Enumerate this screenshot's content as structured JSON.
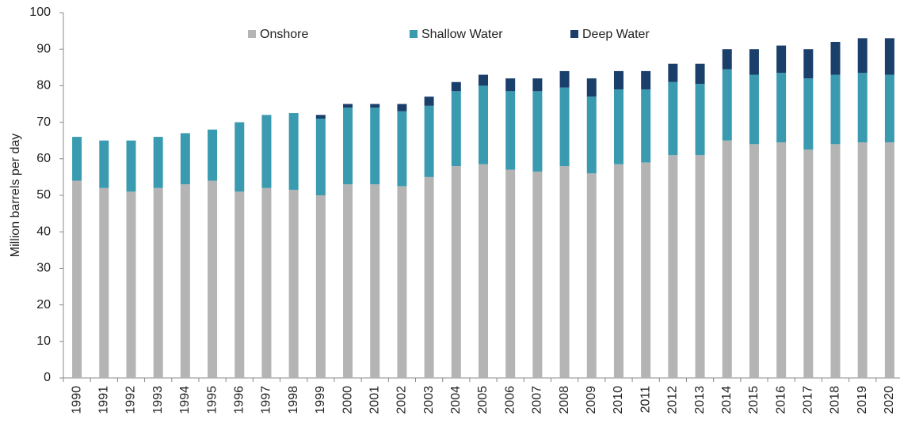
{
  "chart_data": {
    "type": "stacked_bar",
    "y_label": "Million barrels per day",
    "categories": [
      "1990",
      "1991",
      "1992",
      "1993",
      "1994",
      "1995",
      "1996",
      "1997",
      "1998",
      "1999",
      "2000",
      "2001",
      "2002",
      "2003",
      "2004",
      "2005",
      "2006",
      "2007",
      "2008",
      "2009",
      "2010",
      "2011",
      "2012",
      "2013",
      "2014",
      "2015",
      "2016",
      "2017",
      "2018",
      "2019",
      "2020"
    ],
    "series": [
      {
        "name": "Onshore",
        "color": "#b4b4b4",
        "values": [
          54,
          52,
          51,
          52,
          53,
          54,
          51,
          52,
          51.5,
          50,
          53,
          53,
          52.5,
          55,
          58,
          58.5,
          57,
          56.5,
          58,
          56,
          58.5,
          59,
          61,
          61,
          65,
          64,
          64.5,
          62.5,
          64,
          64.5,
          64.5
        ]
      },
      {
        "name": "Shallow Water",
        "color": "#3a9bb0",
        "values": [
          12,
          13,
          14,
          14,
          14,
          14,
          19,
          20,
          21,
          21,
          21,
          21,
          20.5,
          19.5,
          20.5,
          21.5,
          21.5,
          22,
          21.5,
          21,
          20.5,
          20,
          20,
          19.5,
          19.5,
          19,
          19,
          19.5,
          19,
          19,
          18.5
        ]
      },
      {
        "name": "Deep Water",
        "color": "#1a3f6b",
        "values": [
          0,
          0,
          0,
          0,
          0,
          0,
          0,
          0,
          0,
          1,
          1,
          1,
          2,
          2.5,
          2.5,
          3,
          3.5,
          3.5,
          4.5,
          5,
          5,
          5,
          5,
          5.5,
          5.5,
          7,
          7.5,
          8,
          9,
          9.5,
          10
        ]
      }
    ],
    "ylim": [
      0,
      100
    ],
    "yticks": [
      0,
      10,
      20,
      30,
      40,
      50,
      60,
      70,
      80,
      90,
      100
    ],
    "grid": false
  }
}
